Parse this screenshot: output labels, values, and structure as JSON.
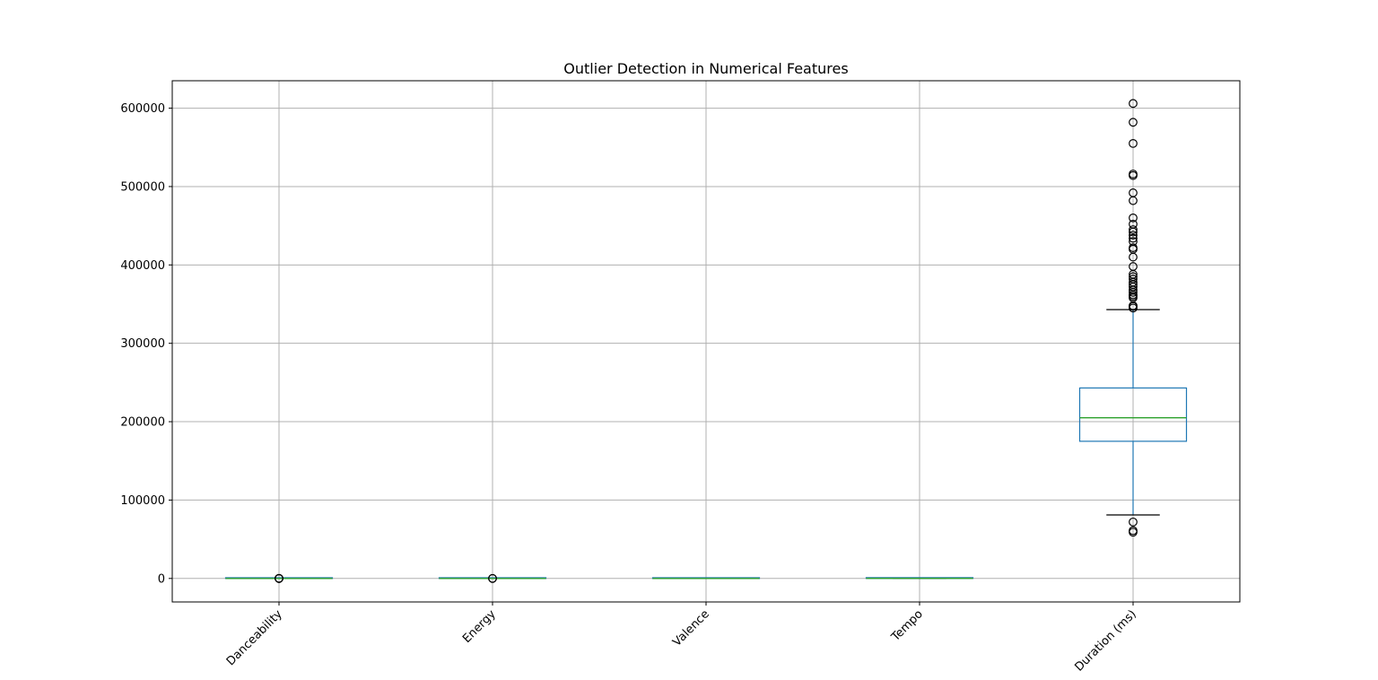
{
  "chart_data": {
    "type": "box",
    "title": "Outlier Detection in Numerical Features",
    "xlabel": "",
    "ylabel": "",
    "ylim": [
      -30000,
      635000
    ],
    "grid": true,
    "yticks": [
      0,
      100000,
      200000,
      300000,
      400000,
      500000,
      600000
    ],
    "ytick_labels": [
      "0",
      "100000",
      "200000",
      "300000",
      "400000",
      "500000",
      "600000"
    ],
    "categories": [
      "Danceability",
      "Energy",
      "Valence",
      "Tempo",
      "Duration (ms)"
    ],
    "boxes": [
      {
        "name": "Danceability",
        "whisker_low": 0.3,
        "q1": 0.6,
        "median": 0.7,
        "q3": 0.8,
        "whisker_high": 1.0,
        "outliers": [
          0.1,
          0.15,
          0.2,
          0.25
        ]
      },
      {
        "name": "Energy",
        "whisker_low": 0.2,
        "q1": 0.5,
        "median": 0.65,
        "q3": 0.8,
        "whisker_high": 1.0,
        "outliers": [
          0.05,
          0.1
        ]
      },
      {
        "name": "Valence",
        "whisker_low": 0.0,
        "q1": 0.3,
        "median": 0.5,
        "q3": 0.7,
        "whisker_high": 1.0,
        "outliers": []
      },
      {
        "name": "Tempo",
        "whisker_low": 50,
        "q1": 95,
        "median": 120,
        "q3": 140,
        "whisker_high": 210,
        "outliers": []
      },
      {
        "name": "Duration (ms)",
        "whisker_low": 81000,
        "q1": 175000,
        "median": 205000,
        "q3": 243000,
        "whisker_high": 343000,
        "outliers": [
          59000,
          61000,
          72000,
          345000,
          347000,
          348000,
          358000,
          360000,
          362000,
          365000,
          368000,
          372000,
          375000,
          378000,
          382000,
          385000,
          388000,
          398000,
          410000,
          420000,
          422000,
          430000,
          434000,
          438000,
          442000,
          445000,
          452000,
          460000,
          482000,
          492000,
          514000,
          516000,
          555000,
          582000,
          606000
        ]
      }
    ],
    "colors": {
      "box": "#1f77b4",
      "median": "#2ca02c",
      "whisker_cap": "#000000",
      "grid": "#b0b0b0",
      "outlier": "#000000"
    }
  }
}
